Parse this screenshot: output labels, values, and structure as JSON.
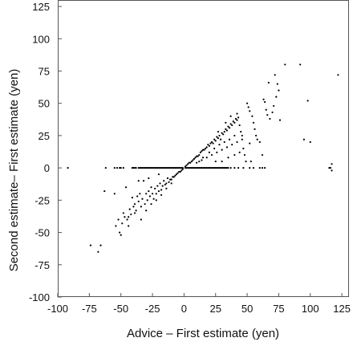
{
  "chart_data": {
    "type": "scatter",
    "xlabel": "Advice – First estimate (yen)",
    "ylabel": "Second estimate– First estimate (yen)",
    "xlim": [
      -100,
      130
    ],
    "ylim": [
      -100,
      130
    ],
    "xticks": [
      -100,
      -75,
      -50,
      -25,
      0,
      25,
      50,
      75,
      100,
      125
    ],
    "yticks": [
      -100,
      -75,
      -50,
      -25,
      0,
      25,
      50,
      75,
      100,
      125
    ],
    "grid": false,
    "marker_color": "#000000",
    "points": [
      [
        -92,
        0
      ],
      [
        -62,
        0
      ],
      [
        -55,
        0
      ],
      [
        -53,
        0
      ],
      [
        -51,
        0
      ],
      [
        -50,
        0
      ],
      [
        -48,
        0
      ],
      [
        -41,
        0
      ],
      [
        -40,
        0
      ],
      [
        -39,
        0
      ],
      [
        -38,
        0
      ],
      [
        -36,
        0
      ],
      [
        -35,
        0
      ],
      [
        -34,
        0
      ],
      [
        -33,
        0
      ],
      [
        -32,
        0
      ],
      [
        -31,
        0
      ],
      [
        -30,
        0
      ],
      [
        -29,
        0
      ],
      [
        -28,
        0
      ],
      [
        -27,
        0
      ],
      [
        -26,
        0
      ],
      [
        -25,
        0
      ],
      [
        -24,
        0
      ],
      [
        -23,
        0
      ],
      [
        -22,
        0
      ],
      [
        -21,
        0
      ],
      [
        -20,
        0
      ],
      [
        -19,
        0
      ],
      [
        -18,
        0
      ],
      [
        -17,
        0
      ],
      [
        -16,
        0
      ],
      [
        -15,
        0
      ],
      [
        -14,
        0
      ],
      [
        -13,
        0
      ],
      [
        -12,
        0
      ],
      [
        -11,
        0
      ],
      [
        -10,
        0
      ],
      [
        -9,
        0
      ],
      [
        -8,
        0
      ],
      [
        -7,
        0
      ],
      [
        -6,
        0
      ],
      [
        -5,
        0
      ],
      [
        -4,
        0
      ],
      [
        -3,
        0
      ],
      [
        -2,
        0
      ],
      [
        -1,
        0
      ],
      [
        1,
        0
      ],
      [
        2,
        0
      ],
      [
        3,
        0
      ],
      [
        4,
        0
      ],
      [
        5,
        0
      ],
      [
        6,
        0
      ],
      [
        7,
        0
      ],
      [
        8,
        0
      ],
      [
        9,
        0
      ],
      [
        10,
        0
      ],
      [
        11,
        0
      ],
      [
        12,
        0
      ],
      [
        13,
        0
      ],
      [
        14,
        0
      ],
      [
        15,
        0
      ],
      [
        16,
        0
      ],
      [
        17,
        0
      ],
      [
        18,
        0
      ],
      [
        19,
        0
      ],
      [
        20,
        0
      ],
      [
        21,
        0
      ],
      [
        22,
        0
      ],
      [
        23,
        0
      ],
      [
        24,
        0
      ],
      [
        25,
        0
      ],
      [
        26,
        0
      ],
      [
        27,
        0
      ],
      [
        28,
        0
      ],
      [
        29,
        0
      ],
      [
        30,
        0
      ],
      [
        31,
        0
      ],
      [
        32,
        0
      ],
      [
        33,
        0
      ],
      [
        34,
        0
      ],
      [
        35,
        0
      ],
      [
        37,
        0
      ],
      [
        40,
        0
      ],
      [
        43,
        0
      ],
      [
        47,
        0
      ],
      [
        52,
        0
      ],
      [
        55,
        0
      ],
      [
        60,
        0
      ],
      [
        62,
        0
      ],
      [
        64,
        0
      ],
      [
        116,
        0
      ],
      [
        117,
        3
      ],
      [
        -74,
        -60
      ],
      [
        -68,
        -65
      ],
      [
        -66,
        -60
      ],
      [
        -63,
        -18
      ],
      [
        -55,
        -20
      ],
      [
        -54,
        -45
      ],
      [
        -52,
        -40
      ],
      [
        -51,
        -50
      ],
      [
        -50,
        -52
      ],
      [
        -49,
        -43
      ],
      [
        -48,
        -35
      ],
      [
        -46,
        -15
      ],
      [
        -45,
        -40
      ],
      [
        -44,
        -38
      ],
      [
        -43,
        -32
      ],
      [
        -42,
        -36
      ],
      [
        -40,
        -30
      ],
      [
        -39,
        -28
      ],
      [
        -38,
        -33
      ],
      [
        -37,
        -22
      ],
      [
        -36,
        -26
      ],
      [
        -35,
        -20
      ],
      [
        -34,
        -30
      ],
      [
        -33,
        -24
      ],
      [
        -32,
        -10
      ],
      [
        -31,
        -28
      ],
      [
        -30,
        -20
      ],
      [
        -29,
        -25
      ],
      [
        -28,
        -18
      ],
      [
        -27,
        -22
      ],
      [
        -26,
        -15
      ],
      [
        -25,
        -20
      ],
      [
        -24,
        -24
      ],
      [
        -23,
        -16
      ],
      [
        -22,
        -20
      ],
      [
        -21,
        -14
      ],
      [
        -20,
        -18
      ],
      [
        -19,
        -12
      ],
      [
        -18,
        -17
      ],
      [
        -17,
        -14
      ],
      [
        -16,
        -10
      ],
      [
        -15,
        -13
      ],
      [
        -14,
        -12
      ],
      [
        -13,
        -8
      ],
      [
        -12,
        -11
      ],
      [
        -11,
        -9
      ],
      [
        -10,
        -9
      ],
      [
        -9,
        -7
      ],
      [
        -8,
        -7
      ],
      [
        -7,
        -6
      ],
      [
        -6,
        -5
      ],
      [
        -5,
        -4
      ],
      [
        -4,
        -3
      ],
      [
        -3,
        -3
      ],
      [
        -2,
        -2
      ],
      [
        -1,
        -1
      ],
      [
        -34,
        -40
      ],
      [
        -30,
        -33
      ],
      [
        -26,
        -28
      ],
      [
        -22,
        -25
      ],
      [
        -18,
        -21
      ],
      [
        -14,
        -16
      ],
      [
        -10,
        -12
      ],
      [
        -39,
        -35
      ],
      [
        -44,
        -45
      ],
      [
        -47,
        -38
      ],
      [
        -41,
        -23
      ],
      [
        -36,
        -10
      ],
      [
        -28,
        -8
      ],
      [
        -20,
        -5
      ],
      [
        1,
        1
      ],
      [
        2,
        2
      ],
      [
        3,
        3
      ],
      [
        4,
        4
      ],
      [
        5,
        4
      ],
      [
        6,
        5
      ],
      [
        7,
        6
      ],
      [
        8,
        7
      ],
      [
        9,
        8
      ],
      [
        10,
        9
      ],
      [
        11,
        9
      ],
      [
        12,
        10
      ],
      [
        13,
        12
      ],
      [
        14,
        13
      ],
      [
        15,
        14
      ],
      [
        16,
        14
      ],
      [
        17,
        15
      ],
      [
        18,
        16
      ],
      [
        19,
        18
      ],
      [
        20,
        17
      ],
      [
        21,
        19
      ],
      [
        22,
        20
      ],
      [
        23,
        19
      ],
      [
        24,
        22
      ],
      [
        25,
        21
      ],
      [
        26,
        24
      ],
      [
        27,
        23
      ],
      [
        28,
        25
      ],
      [
        29,
        22
      ],
      [
        30,
        27
      ],
      [
        31,
        26
      ],
      [
        32,
        28
      ],
      [
        33,
        30
      ],
      [
        34,
        29
      ],
      [
        35,
        32
      ],
      [
        36,
        31
      ],
      [
        37,
        34
      ],
      [
        38,
        33
      ],
      [
        39,
        36
      ],
      [
        40,
        35
      ],
      [
        41,
        38
      ],
      [
        42,
        37
      ],
      [
        43,
        39
      ],
      [
        44,
        33
      ],
      [
        45,
        28
      ],
      [
        46,
        22
      ],
      [
        47,
        15
      ],
      [
        48,
        10
      ],
      [
        49,
        5
      ],
      [
        10,
        4
      ],
      [
        14,
        6
      ],
      [
        18,
        8
      ],
      [
        22,
        10
      ],
      [
        26,
        12
      ],
      [
        30,
        14
      ],
      [
        34,
        16
      ],
      [
        38,
        18
      ],
      [
        42,
        20
      ],
      [
        46,
        25
      ],
      [
        20,
        12
      ],
      [
        24,
        15
      ],
      [
        28,
        18
      ],
      [
        32,
        20
      ],
      [
        36,
        22
      ],
      [
        40,
        25
      ],
      [
        30,
        5
      ],
      [
        35,
        8
      ],
      [
        40,
        10
      ],
      [
        44,
        12
      ],
      [
        27,
        28
      ],
      [
        33,
        35
      ],
      [
        37,
        40
      ],
      [
        42,
        42
      ],
      [
        15,
        8
      ],
      [
        25,
        5
      ],
      [
        12,
        5
      ],
      [
        50,
        50
      ],
      [
        51,
        47
      ],
      [
        52,
        44
      ],
      [
        54,
        40
      ],
      [
        55,
        35
      ],
      [
        56,
        30
      ],
      [
        57,
        25
      ],
      [
        58,
        22
      ],
      [
        60,
        20
      ],
      [
        62,
        10
      ],
      [
        63,
        53
      ],
      [
        64,
        51
      ],
      [
        65,
        45
      ],
      [
        66,
        41
      ],
      [
        67,
        66
      ],
      [
        68,
        38
      ],
      [
        70,
        43
      ],
      [
        71,
        48
      ],
      [
        72,
        72
      ],
      [
        73,
        55
      ],
      [
        74,
        65
      ],
      [
        75,
        60
      ],
      [
        76,
        37
      ],
      [
        52,
        19
      ],
      [
        53,
        5
      ],
      [
        80,
        80
      ],
      [
        92,
        80
      ],
      [
        95,
        22
      ],
      [
        98,
        52
      ],
      [
        100,
        20
      ],
      [
        117,
        -2
      ],
      [
        115,
        0
      ],
      [
        122,
        72
      ]
    ]
  }
}
